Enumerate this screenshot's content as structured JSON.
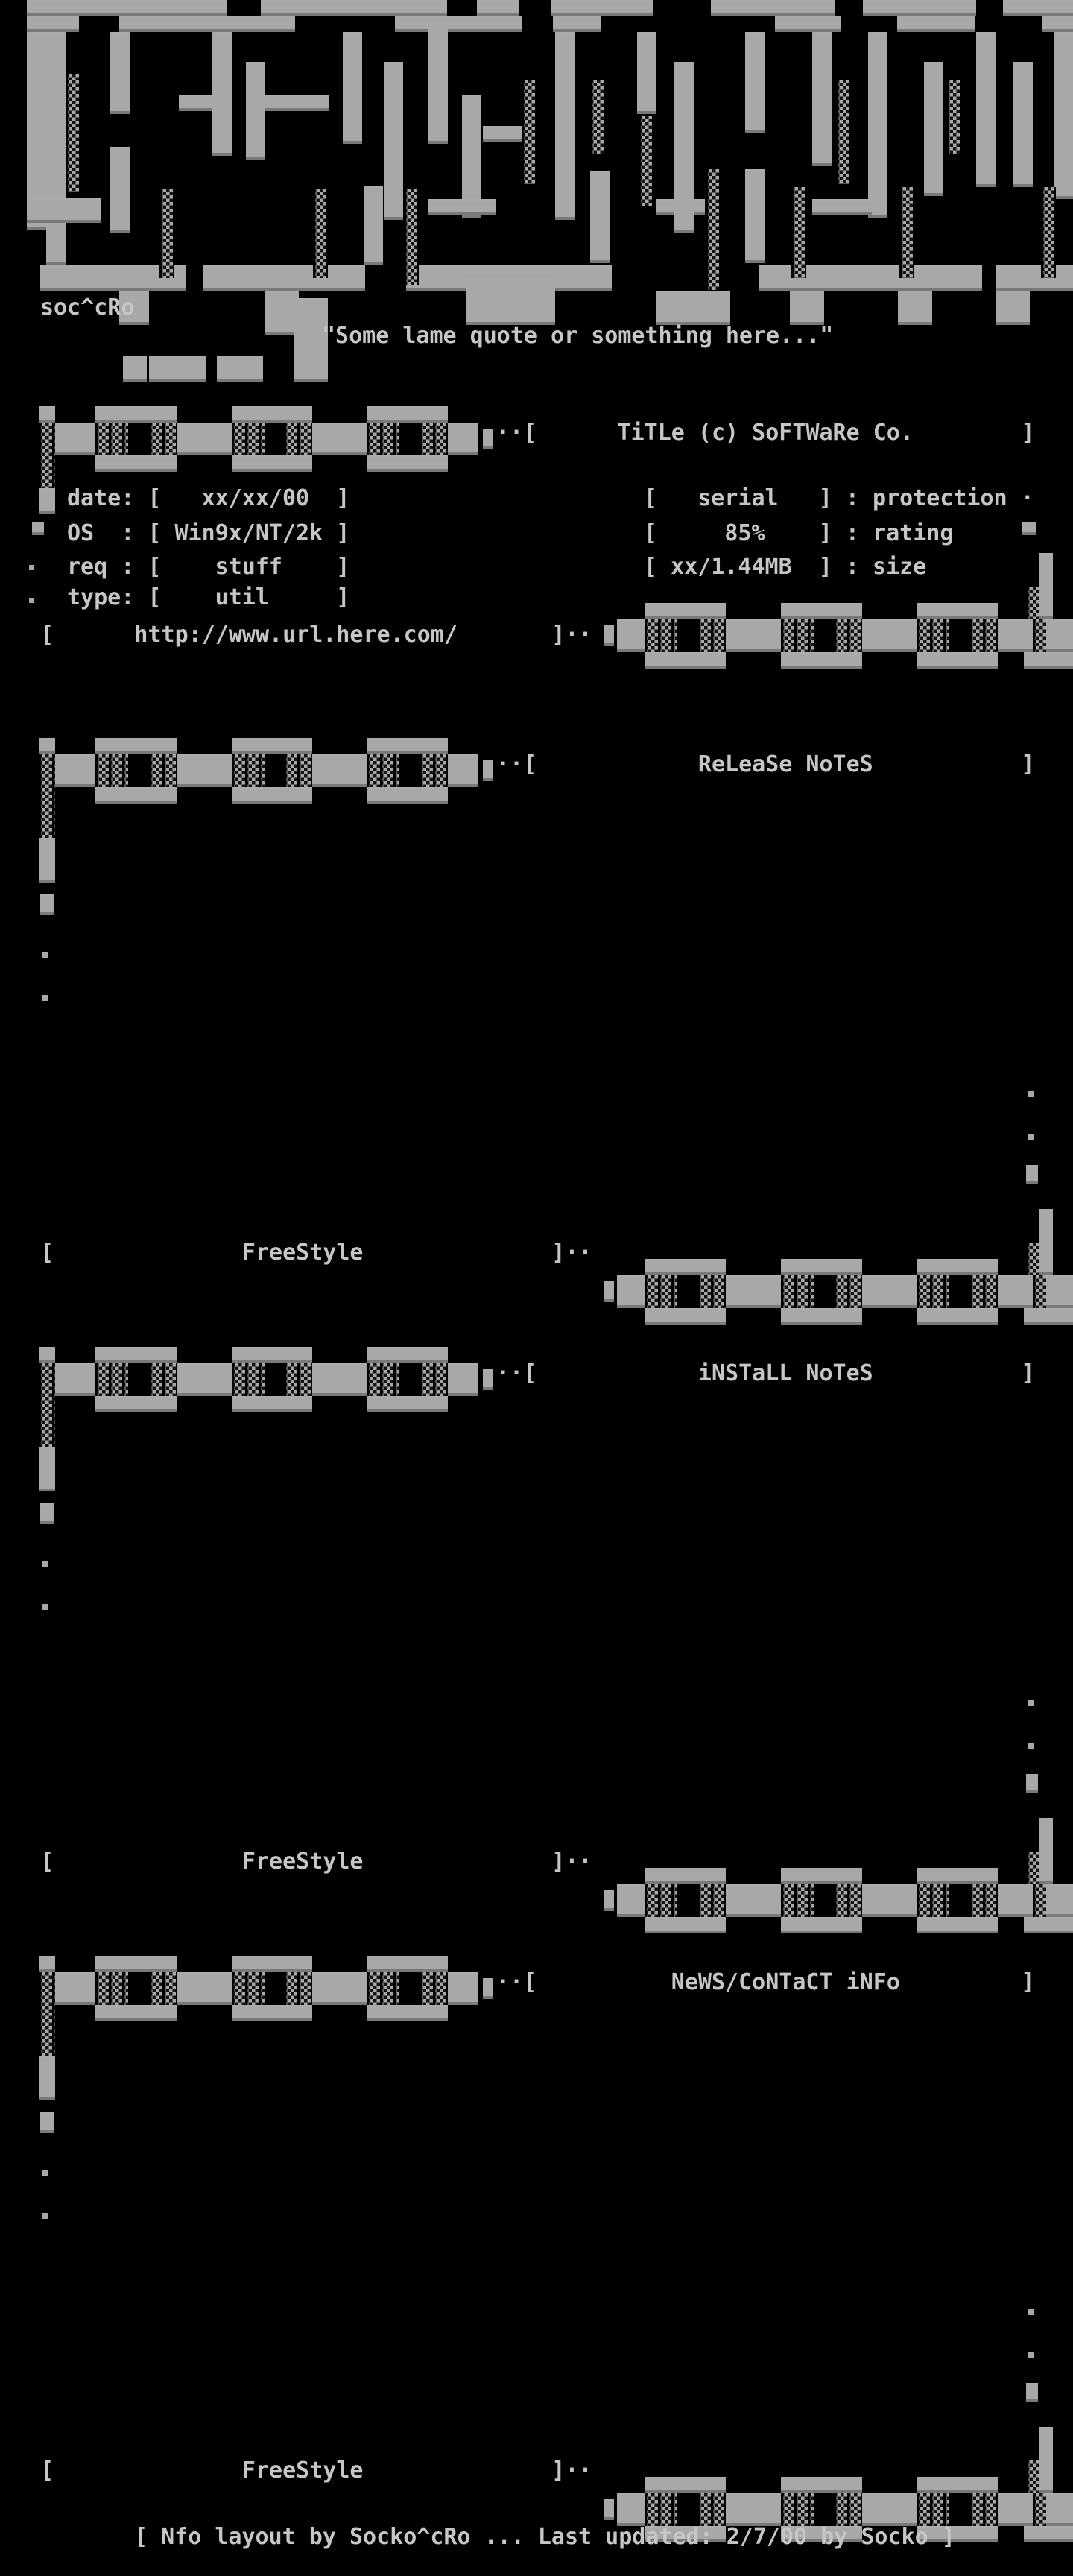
{
  "palette": {
    "background": "#000000",
    "art_gray": "#a8a8a8",
    "text_gray": "#c6c6c6"
  },
  "logo": {
    "group_tag": "soc^cRo",
    "style": "abstract-block-maze-ascii"
  },
  "quote": "\"Some lame quote or something here...\"",
  "title_block": {
    "title": "TiTLe (c) SoFTWaRe Co.",
    "header_line": "··[      TiTLe (c) SoFTWaRe Co.        ]",
    "fields": [
      {
        "label": "date",
        "value": "xx/xx/00"
      },
      {
        "label": "OS",
        "value": "Win9x/NT/2k"
      },
      {
        "label": "req",
        "value": "stuff"
      },
      {
        "label": "type",
        "value": "util"
      }
    ],
    "stats": [
      {
        "value": "serial",
        "label": "protection"
      },
      {
        "value": "85%",
        "label": "rating"
      },
      {
        "value": "xx/1.44MB",
        "label": "size"
      }
    ],
    "rows_left": [
      "date: [   xx/xx/00  ]",
      "OS  : [ Win9x/NT/2k ]",
      "req : [    stuff    ]",
      "type: [    util     ]"
    ],
    "rows_right": [
      "[   serial   ] : protection ·",
      "[     85%    ] : rating",
      "[ xx/1.44MB  ] : size"
    ],
    "url": "http://www.url.here.com/",
    "url_line": "[      http://www.url.here.com/       ]··"
  },
  "sections": [
    {
      "header": "ReLeaSe NoTeS",
      "header_line": "··[            ReLeaSe NoTeS           ]",
      "footer": "FreeStyle",
      "footer_line": "[              FreeStyle              ]··"
    },
    {
      "header": "iNSTaLL NoTeS",
      "header_line": "··[            iNSTaLL NoTeS           ]",
      "footer": "FreeStyle",
      "footer_line": "[              FreeStyle              ]··"
    },
    {
      "header": "NeWS/CoNTaCT iNFo",
      "header_line": "··[          NeWS/CoNTaCT iNFo         ]",
      "footer": "FreeStyle",
      "footer_line": "[              FreeStyle              ]··"
    }
  ],
  "footer_line": "[ Nfo layout by Socko^cRo ... Last updated: 2/7/00 by Socko ]"
}
